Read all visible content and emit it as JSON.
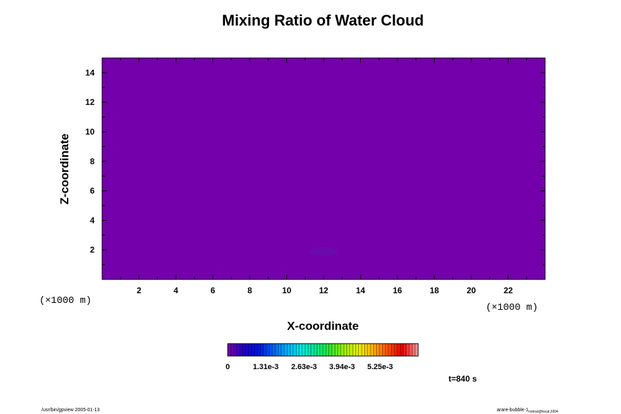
{
  "chart_data": {
    "type": "heatmap",
    "title": "Mixing Ratio of Water Cloud",
    "xlabel": "X-coordinate",
    "ylabel": "Z-coordinate",
    "x_unit": "(×1000 m)",
    "y_unit": "(×1000 m)",
    "xlim": [
      0,
      24
    ],
    "ylim": [
      0,
      15
    ],
    "x_ticks": [
      2,
      4,
      6,
      8,
      10,
      12,
      14,
      16,
      18,
      20,
      22
    ],
    "y_ticks": [
      2,
      4,
      6,
      8,
      10,
      12,
      14
    ],
    "field_value": 0,
    "field_color": "#7400ab",
    "anomaly": {
      "x_center": 12,
      "z_center": 1.9,
      "x_halfwidth": 0.8,
      "z_halfwidth": 0.3,
      "color": "#6a0aad"
    },
    "colorbar": {
      "min": 0,
      "max": 0.00656,
      "labels": [
        "0",
        "1.31e-3",
        "2.63e-3",
        "3.94e-3",
        "5.25e-3"
      ],
      "label_values": [
        0,
        0.00131,
        0.00263,
        0.00394,
        0.00525
      ],
      "colors": [
        "#7400ab",
        "#2000c8",
        "#0010e0",
        "#0060f0",
        "#00b0ff",
        "#00e8e0",
        "#00e890",
        "#30e830",
        "#a0f000",
        "#e8f000",
        "#ffb000",
        "#ff5000",
        "#e80000",
        "#ff9090"
      ]
    },
    "time_label": "t=840 s",
    "footer_left": "/usr/bin/gpview 2005-01-13",
    "footer_right_main": "arare-bubble-1",
    "footer_right_sub": "nohost@local,2004"
  }
}
